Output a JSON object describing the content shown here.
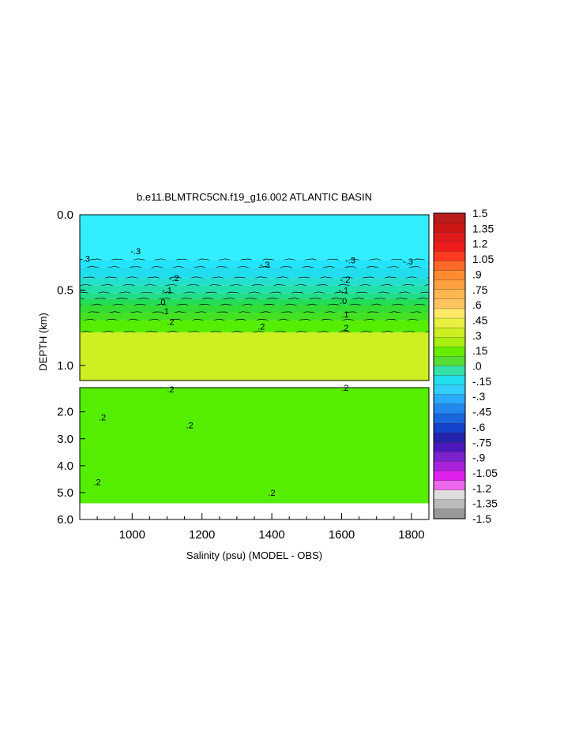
{
  "chart_data": {
    "type": "heatmap",
    "title": "b.e11.BLMTRC5CN.f19_g16.002 ATLANTIC BASIN",
    "xlabel": "Salinity (psu) (MODEL - OBS)",
    "ylabel": "DEPTH (km)",
    "xlim": [
      850,
      1850
    ],
    "x_ticks": [
      "1000",
      "1200",
      "1400",
      "1600",
      "1800"
    ],
    "x_tick_values": [
      1000,
      1200,
      1400,
      1600,
      1800
    ],
    "upper_panel": {
      "ylim": [
        0.0,
        1.1
      ],
      "y_ticks": [
        "0.0",
        "0.5",
        "1.0"
      ],
      "y_tick_values": [
        0.0,
        0.5,
        1.0
      ],
      "bands": [
        {
          "from": 0.0,
          "to": 0.3,
          "value": -0.3
        },
        {
          "from": 0.3,
          "to": 0.35,
          "value": -0.25
        },
        {
          "from": 0.35,
          "to": 0.42,
          "value": -0.2
        },
        {
          "from": 0.42,
          "to": 0.47,
          "value": -0.15
        },
        {
          "from": 0.47,
          "to": 0.52,
          "value": -0.1
        },
        {
          "from": 0.52,
          "to": 0.56,
          "value": -0.05
        },
        {
          "from": 0.56,
          "to": 0.6,
          "value": 0.0
        },
        {
          "from": 0.6,
          "to": 0.65,
          "value": 0.05
        },
        {
          "from": 0.65,
          "to": 0.7,
          "value": 0.1
        },
        {
          "from": 0.7,
          "to": 0.78,
          "value": 0.15
        },
        {
          "from": 0.78,
          "to": 1.1,
          "value": 0.2
        }
      ],
      "contour_labels": [
        {
          "x": 865,
          "depth": 0.29,
          "text": "-.3"
        },
        {
          "x": 1010,
          "depth": 0.24,
          "text": "-.3"
        },
        {
          "x": 1380,
          "depth": 0.33,
          "text": "-.3"
        },
        {
          "x": 1625,
          "depth": 0.3,
          "text": "-.3"
        },
        {
          "x": 1790,
          "depth": 0.31,
          "text": "-.3"
        },
        {
          "x": 1120,
          "depth": 0.42,
          "text": "-.2"
        },
        {
          "x": 1610,
          "depth": 0.43,
          "text": "-.2"
        },
        {
          "x": 1100,
          "depth": 0.5,
          "text": "-.1"
        },
        {
          "x": 1605,
          "depth": 0.5,
          "text": "-.1"
        },
        {
          "x": 1085,
          "depth": 0.58,
          "text": ".0"
        },
        {
          "x": 1605,
          "depth": 0.57,
          "text": ".0"
        },
        {
          "x": 1095,
          "depth": 0.64,
          "text": ".1"
        },
        {
          "x": 1610,
          "depth": 0.66,
          "text": ".1"
        },
        {
          "x": 1110,
          "depth": 0.71,
          "text": ".2"
        },
        {
          "x": 1370,
          "depth": 0.74,
          "text": ".2"
        },
        {
          "x": 1610,
          "depth": 0.75,
          "text": ".2"
        }
      ]
    },
    "lower_panel": {
      "ylim": [
        1.1,
        6.0
      ],
      "y_ticks": [
        "2.0",
        "3.0",
        "4.0",
        "5.0",
        "6.0"
      ],
      "y_tick_values": [
        2.0,
        3.0,
        4.0,
        5.0,
        6.0
      ],
      "bands": [
        {
          "from": 1.1,
          "to": 5.4,
          "value": 0.15
        },
        {
          "from": 5.4,
          "to": 6.0,
          "value": null
        }
      ],
      "contour_labels": [
        {
          "x": 1110,
          "depth": 1.16,
          "text": ".2"
        },
        {
          "x": 1610,
          "depth": 1.1,
          "text": ".2"
        },
        {
          "x": 915,
          "depth": 2.2,
          "text": ".2"
        },
        {
          "x": 1165,
          "depth": 2.5,
          "text": ".2"
        },
        {
          "x": 900,
          "depth": 4.6,
          "text": ".2"
        },
        {
          "x": 1400,
          "depth": 5.0,
          "text": ".2"
        }
      ]
    },
    "colorbar": {
      "min": -1.5,
      "max": 1.5,
      "labels": [
        "1.5",
        "1.35",
        "1.2",
        "1.05",
        ".9",
        ".75",
        ".6",
        ".45",
        ".3",
        ".15",
        ".0",
        "-.15",
        "-.3",
        "-.45",
        "-.6",
        "-.75",
        "-.9",
        "-1.05",
        "-1.2",
        "-1.35",
        "-1.5"
      ],
      "colors": [
        "#bb1c1c",
        "#cc1616",
        "#e01a1a",
        "#f01c1c",
        "#ff3a20",
        "#ff6a28",
        "#ff8c30",
        "#ffa040",
        "#ffb850",
        "#ffc460",
        "#ffe868",
        "#e8f040",
        "#ccee22",
        "#aaee10",
        "#66ee00",
        "#55dd33",
        "#33e0aa",
        "#22ddee",
        "#33ccff",
        "#2aaaff",
        "#2288ee",
        "#1a66dd",
        "#1444cc",
        "#2222aa",
        "#4a18bb",
        "#7a22cc",
        "#aa22dd",
        "#dd22ee",
        "#ee66ee",
        "#dddddd",
        "#bbbbbb",
        "#999999"
      ]
    },
    "band_colors": {
      "-0.3": "#33eeff",
      "-0.25": "#22e4ff",
      "-0.2": "#22ddee",
      "-0.15": "#22e0cc",
      "-0.1": "#22e0aa",
      "-0.05": "#22dd88",
      "0.0": "#22dd55",
      "0.05": "#33dd33",
      "0.1": "#44e022",
      "0.15": "#55ee00",
      "0.2": "#ccf022",
      "missing": "#ffffff"
    }
  }
}
